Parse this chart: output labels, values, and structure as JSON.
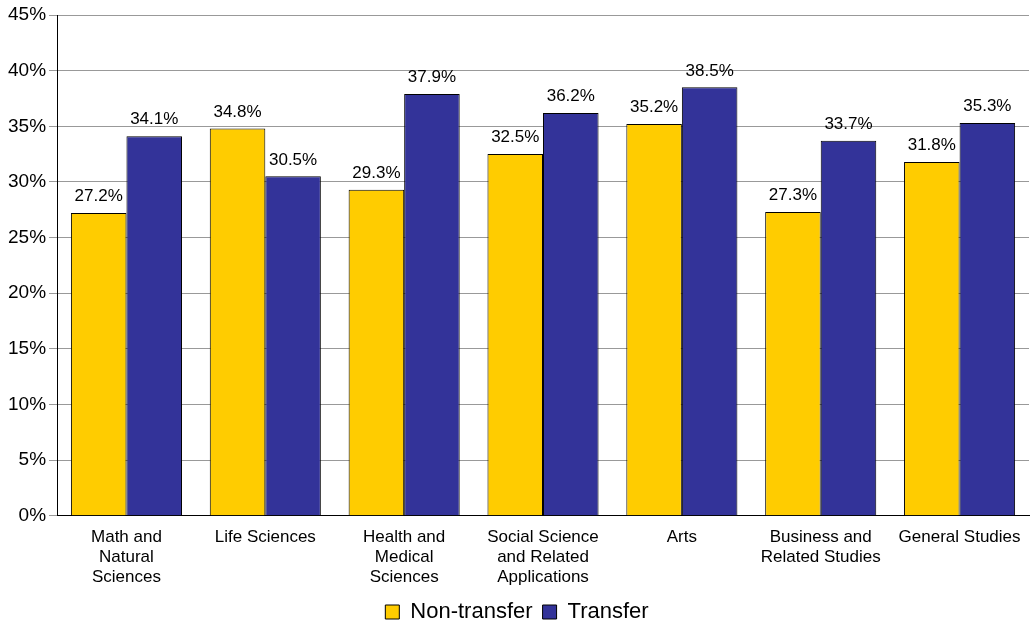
{
  "chart_data": {
    "type": "bar",
    "categories": [
      "Math and Natural Sciences",
      "Life Sciences",
      "Health and Medical Sciences",
      "Social Science and Related Applications",
      "Arts",
      "Business and Related Studies",
      "General Studies"
    ],
    "series": [
      {
        "name": "Non-transfer",
        "color": "#ffcc00",
        "values": [
          27.2,
          34.8,
          29.3,
          32.5,
          35.2,
          27.3,
          31.8
        ],
        "value_labels": [
          "27.2%",
          "34.8%",
          "29.3%",
          "32.5%",
          "35.2%",
          "27.3%",
          "31.8%"
        ]
      },
      {
        "name": "Transfer",
        "color": "#333399",
        "values": [
          34.1,
          30.5,
          37.9,
          36.2,
          38.5,
          33.7,
          35.3
        ],
        "value_labels": [
          "34.1%",
          "30.5%",
          "37.9%",
          "36.2%",
          "38.5%",
          "33.7%",
          "35.3%"
        ]
      }
    ],
    "ylim": [
      0,
      45
    ],
    "yticks": [
      {
        "value": 0,
        "label": "0%"
      },
      {
        "value": 5,
        "label": "5%"
      },
      {
        "value": 10,
        "label": "10%"
      },
      {
        "value": 15,
        "label": "15%"
      },
      {
        "value": 20,
        "label": "20%"
      },
      {
        "value": 25,
        "label": "25%"
      },
      {
        "value": 30,
        "label": "30%"
      },
      {
        "value": 35,
        "label": "35%"
      },
      {
        "value": 40,
        "label": "40%"
      },
      {
        "value": 45,
        "label": "45%"
      }
    ],
    "grid": "y",
    "legend": "bottom"
  }
}
